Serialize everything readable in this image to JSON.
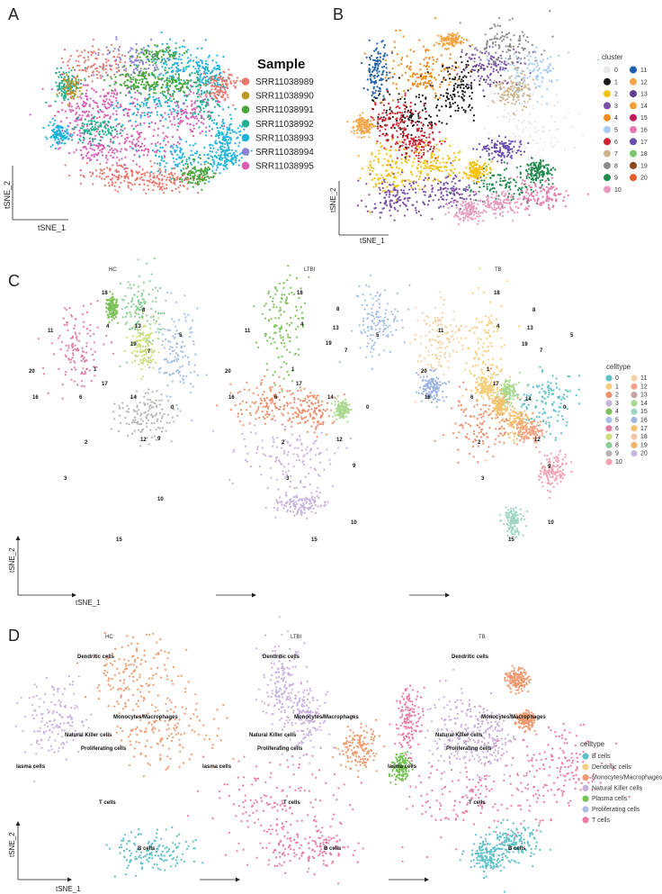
{
  "chart_data": [
    {
      "panel": "A",
      "type": "scatter",
      "xlabel": "tSNE_1",
      "ylabel": "tSNE_2",
      "legend": {
        "title": "Sample",
        "placement": "right",
        "entries": [
          {
            "name": "SRR11038989",
            "color": "#e9766c"
          },
          {
            "name": "SRR11038990",
            "color": "#c09520"
          },
          {
            "name": "SRR11038991",
            "color": "#49a63c"
          },
          {
            "name": "SRR11038992",
            "color": "#23b08f"
          },
          {
            "name": "SRR11038993",
            "color": "#1fb3dd"
          },
          {
            "name": "SRR11038994",
            "color": "#8c84d6"
          },
          {
            "name": "SRR11038995",
            "color": "#d85bb3"
          }
        ]
      }
    },
    {
      "panel": "B",
      "type": "scatter",
      "xlabel": "tSNE_1",
      "ylabel": "tSNE_2",
      "legend": {
        "title": "cluster",
        "placement": "right",
        "entries": [
          {
            "name": "0",
            "color": "#e8e8e8"
          },
          {
            "name": "1",
            "color": "#1a1a1a"
          },
          {
            "name": "2",
            "color": "#f2c10f"
          },
          {
            "name": "3",
            "color": "#7b4fa8"
          },
          {
            "name": "4",
            "color": "#f08c1e"
          },
          {
            "name": "5",
            "color": "#a8cdef"
          },
          {
            "name": "6",
            "color": "#d4212d"
          },
          {
            "name": "7",
            "color": "#cdb387"
          },
          {
            "name": "8",
            "color": "#8c8c8c"
          },
          {
            "name": "9",
            "color": "#1f8a4c"
          },
          {
            "name": "10",
            "color": "#e89bbd"
          },
          {
            "name": "11",
            "color": "#1f5fa8"
          },
          {
            "name": "12",
            "color": "#f4a646"
          },
          {
            "name": "13",
            "color": "#5b3f8f"
          },
          {
            "name": "14",
            "color": "#f2a23a"
          },
          {
            "name": "15",
            "color": "#c2185b"
          },
          {
            "name": "16",
            "color": "#e57aa8"
          },
          {
            "name": "17",
            "color": "#6a4fb0"
          },
          {
            "name": "18",
            "color": "#7cc46a"
          },
          {
            "name": "19",
            "color": "#8b4a1e"
          },
          {
            "name": "20",
            "color": "#e85c2a"
          }
        ]
      }
    },
    {
      "panel": "C",
      "type": "scatter",
      "xlabel": "tSNE_1",
      "ylabel": "tSNE_2",
      "facets": [
        "HC",
        "LTBI",
        "TB"
      ],
      "cluster_labels": [
        "0",
        "1",
        "2",
        "3",
        "4",
        "5",
        "6",
        "7",
        "8",
        "9",
        "10",
        "11",
        "12",
        "13",
        "14",
        "15",
        "16",
        "17",
        "18",
        "19",
        "20"
      ],
      "legend": {
        "title": "celltype",
        "placement": "right",
        "entries": [
          {
            "name": "0",
            "color": "#5cc1c8"
          },
          {
            "name": "1",
            "color": "#f6cf7a"
          },
          {
            "name": "2",
            "color": "#ef8f6b"
          },
          {
            "name": "3",
            "color": "#c8b3dc"
          },
          {
            "name": "4",
            "color": "#7dc25a"
          },
          {
            "name": "5",
            "color": "#a4bfe7"
          },
          {
            "name": "6",
            "color": "#e07fa8"
          },
          {
            "name": "7",
            "color": "#cbe07a"
          },
          {
            "name": "8",
            "color": "#8ccf99"
          },
          {
            "name": "9",
            "color": "#b5b5b5"
          },
          {
            "name": "10",
            "color": "#f2a0b2"
          },
          {
            "name": "11",
            "color": "#f5d2a2"
          },
          {
            "name": "12",
            "color": "#f5a487"
          },
          {
            "name": "13",
            "color": "#c8a3a8"
          },
          {
            "name": "14",
            "color": "#a9d98e"
          },
          {
            "name": "15",
            "color": "#9dd6c1"
          },
          {
            "name": "16",
            "color": "#9db5e0"
          },
          {
            "name": "17",
            "color": "#f3c36f"
          },
          {
            "name": "18",
            "color": "#f2c6a6"
          },
          {
            "name": "19",
            "color": "#f3b46a"
          },
          {
            "name": "20",
            "color": "#c7b8e2"
          }
        ]
      }
    },
    {
      "panel": "D",
      "type": "scatter",
      "xlabel": "tSNE_1",
      "ylabel": "tSNE_2",
      "facets": [
        "HC",
        "LTBI",
        "TB"
      ],
      "annotations": [
        "Dendritic cells",
        "Monocytes/Macrophages",
        "Natural Killer cells",
        "Proliferating cells",
        "lasma cells",
        "T cells",
        "B cells"
      ],
      "legend": {
        "title": "celltype",
        "placement": "right",
        "entries": [
          {
            "name": "B cells",
            "color": "#5ec0c9"
          },
          {
            "name": "Dendritic cells",
            "color": "#f6cf86"
          },
          {
            "name": "Monocytes/Macrophages",
            "color": "#ef9a6e"
          },
          {
            "name": "Natural Killer cells",
            "color": "#c9b1de"
          },
          {
            "name": "Plasma cells",
            "color": "#78c257"
          },
          {
            "name": "Proliferating cells",
            "color": "#a9bfe6"
          },
          {
            "name": "T cells",
            "color": "#ea7ba3"
          }
        ]
      }
    }
  ],
  "labels": {
    "A": "A",
    "B": "B",
    "C": "C",
    "D": "D"
  }
}
